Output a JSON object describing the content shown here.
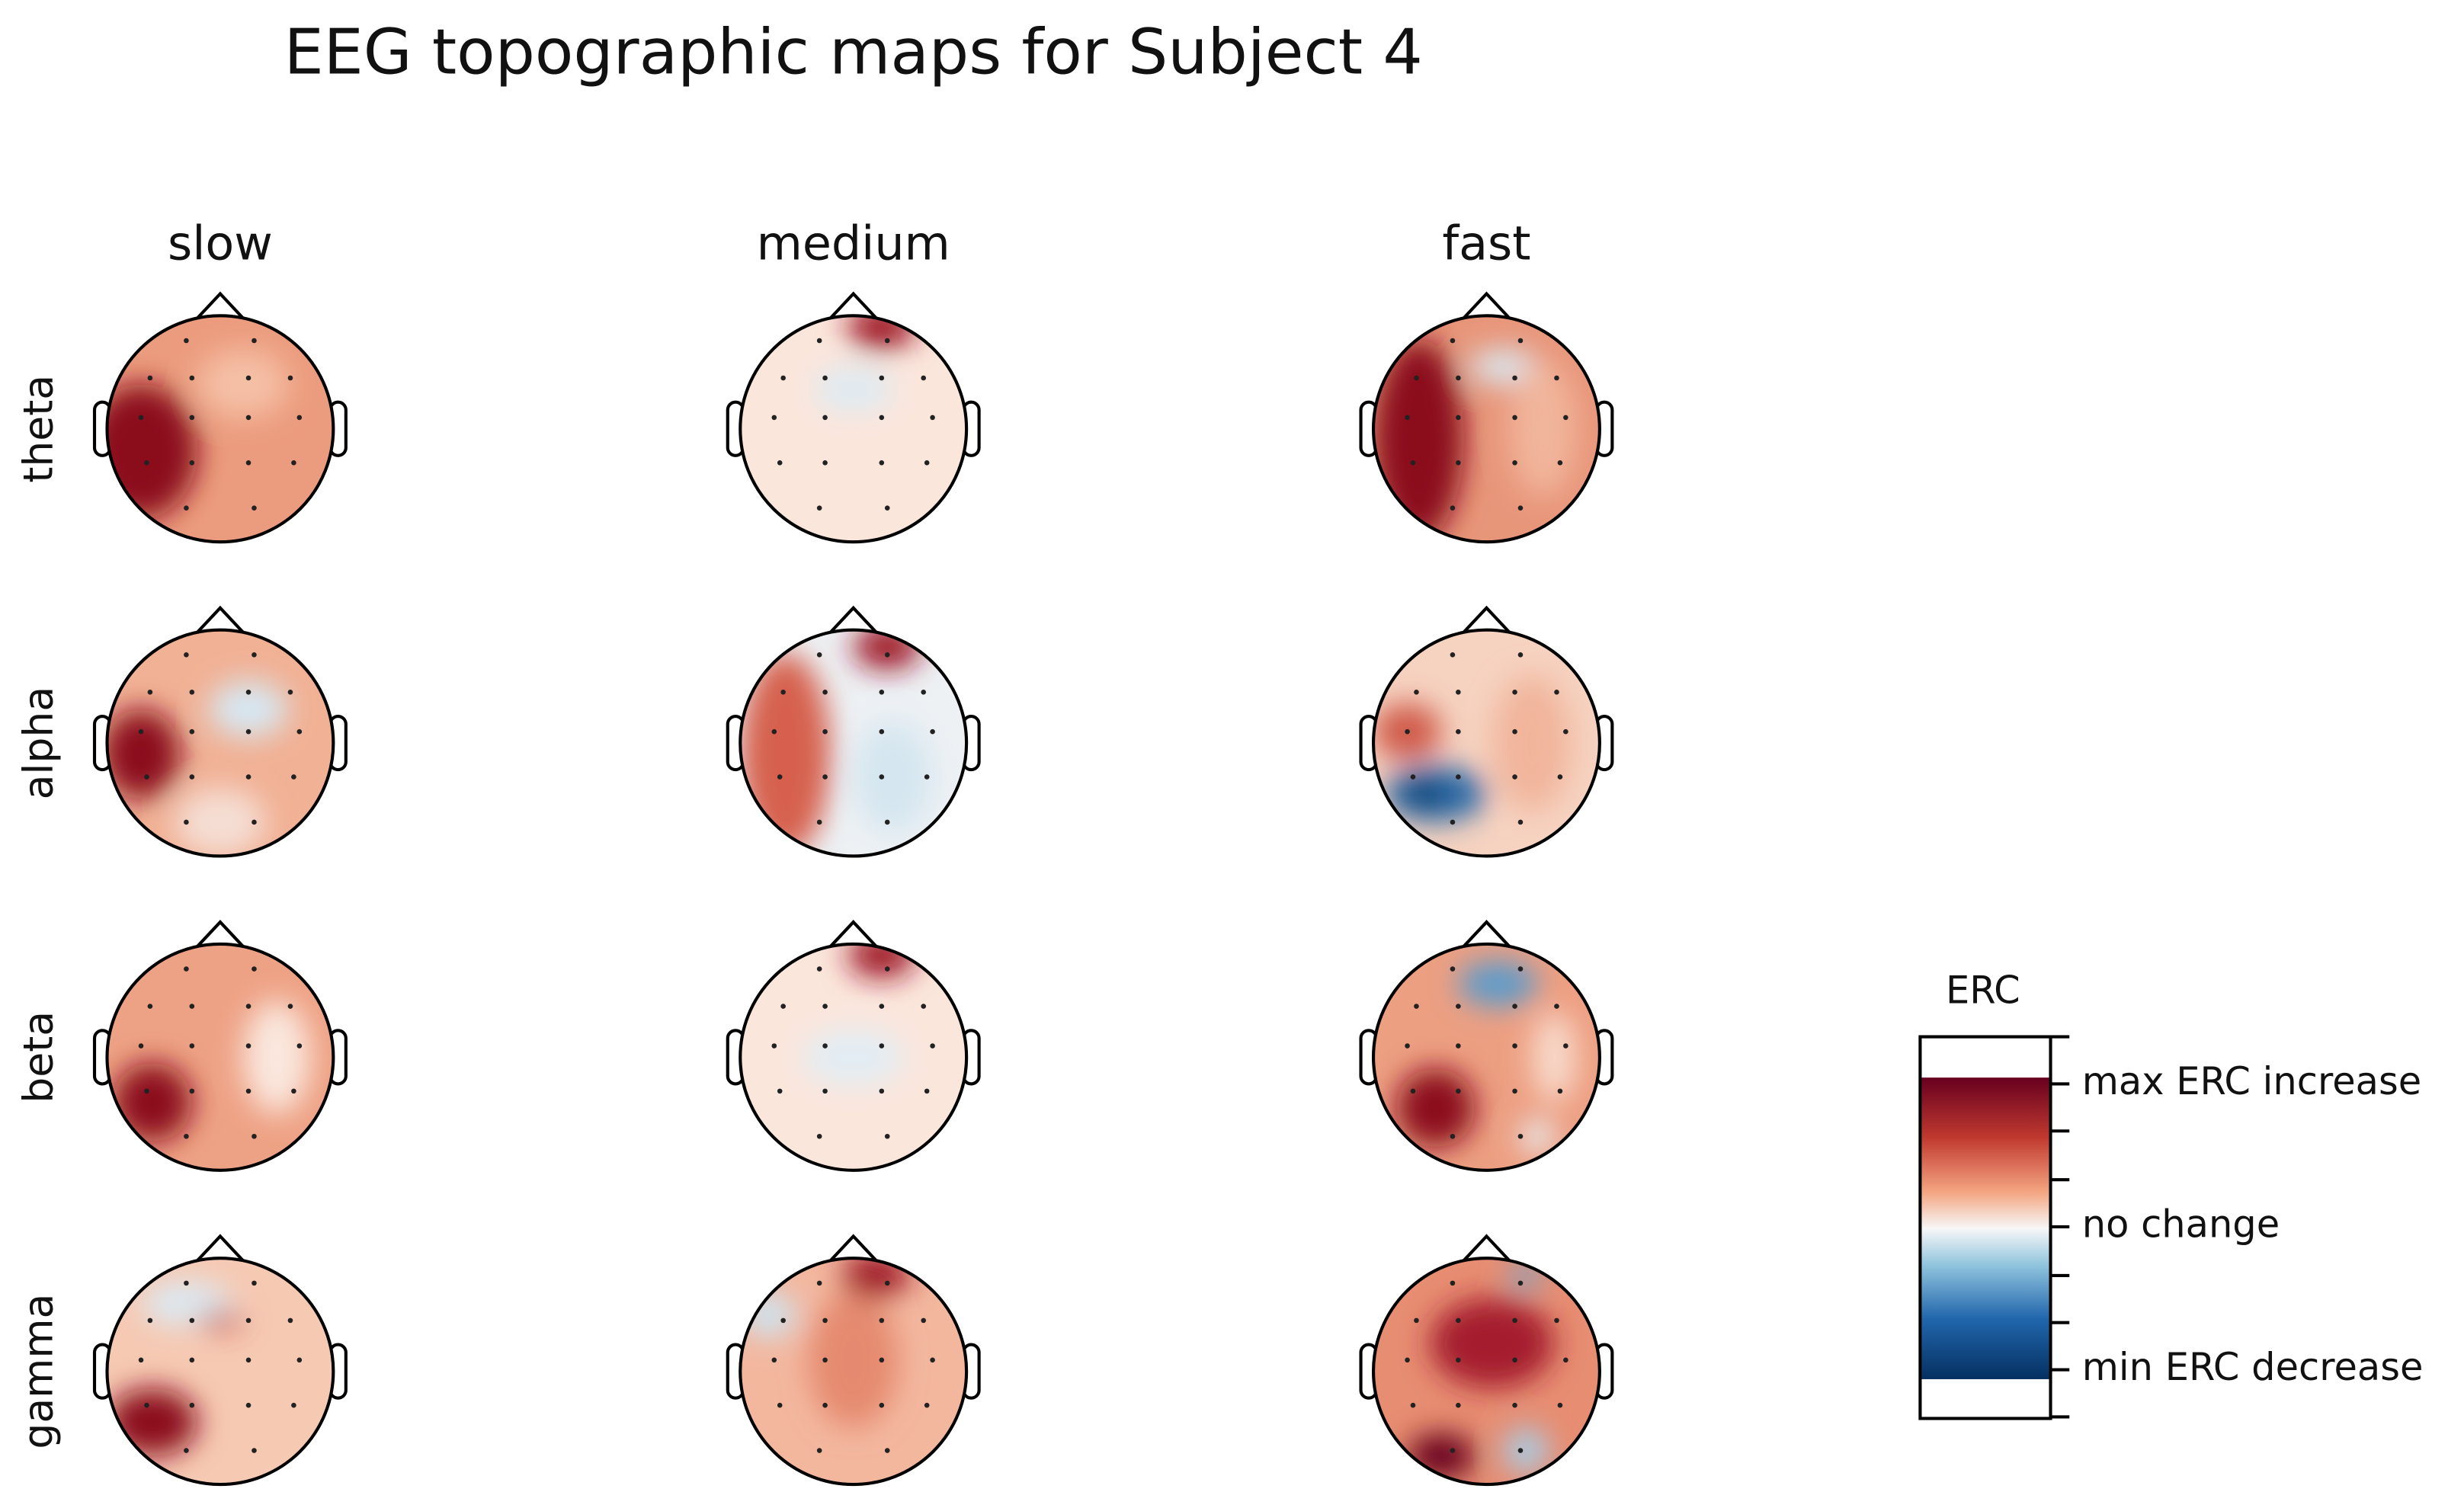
{
  "title": "EEG topographic maps for Subject 4",
  "columns": [
    "slow",
    "medium",
    "fast"
  ],
  "rows": [
    "theta",
    "alpha",
    "beta",
    "gamma"
  ],
  "colorbar": {
    "title": "ERC",
    "labels": [
      "max ERC increase",
      "no change",
      "min ERC decrease"
    ]
  }
}
